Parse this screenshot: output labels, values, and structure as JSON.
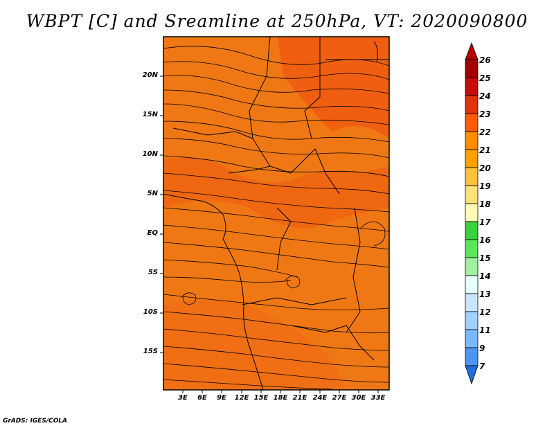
{
  "title": "WBPT [C] and Sreamline at 250hPa, VT: 2020090800",
  "credit": "GrADS: IGES/COLA",
  "map": {
    "lat_labels": [
      "20N",
      "15N",
      "10N",
      "5N",
      "EQ",
      "5S",
      "10S",
      "15S"
    ],
    "lon_labels": [
      "3E",
      "6E",
      "9E",
      "12E",
      "15E",
      "18E",
      "21E",
      "24E",
      "27E",
      "30E",
      "33E"
    ],
    "field": "wet-bulb potential temperature (shaded)",
    "overlay": "streamlines at 250hPa"
  },
  "colorbar": {
    "labels": [
      "26",
      "25",
      "24",
      "23",
      "22",
      "21",
      "20",
      "19",
      "18",
      "17",
      "16",
      "15",
      "14",
      "13",
      "12",
      "11",
      "9",
      "7"
    ],
    "colors": [
      "#a50000",
      "#c80a0a",
      "#e1320a",
      "#ff5a00",
      "#ff8c00",
      "#ffa000",
      "#ffc03c",
      "#ffe178",
      "#fffab4",
      "#37d23c",
      "#5ae65a",
      "#a0f0a0",
      "#e6ffff",
      "#c8e6ff",
      "#a0d2ff",
      "#78b9ff",
      "#4b96f0",
      "#2064dc"
    ],
    "ends": {
      "top": "#b40000",
      "bottom": "#1e6edc"
    }
  }
}
